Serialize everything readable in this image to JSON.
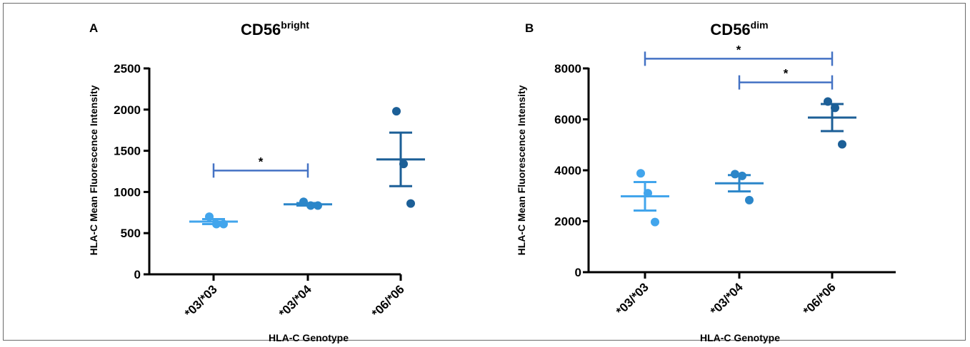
{
  "colors": {
    "g1": "#42a5ec",
    "g2": "#2b86c9",
    "g3": "#1c5f97",
    "bracket": "#4472c4",
    "axis": "#000000"
  },
  "chart_data": [
    {
      "type": "scatter",
      "panel_label": "A",
      "title": "CD56",
      "title_sup": "bright",
      "xlabel": "HLA-C Genotype",
      "ylabel": "HLA-C Mean Fluorescence Intensity",
      "categories": [
        "*03/*03",
        "*03/*04",
        "*06/*06"
      ],
      "ylim": [
        0,
        2500
      ],
      "yticks": [
        0,
        500,
        1000,
        1500,
        2000,
        2500
      ],
      "ytick_labels": [
        "0",
        "500",
        "1000",
        "1500",
        "2000",
        "2500"
      ],
      "series": [
        {
          "category": "*03/*03",
          "points": [
            700,
            610,
            610
          ],
          "mean": 640,
          "sem_low": 610,
          "sem_high": 670
        },
        {
          "category": "*03/*04",
          "points": [
            880,
            835,
            835
          ],
          "mean": 850,
          "sem_low": 835,
          "sem_high": 865
        },
        {
          "category": "*06/*06",
          "points": [
            1980,
            1340,
            860
          ],
          "mean": 1395,
          "sem_low": 1070,
          "sem_high": 1720
        }
      ],
      "significance": [
        {
          "from": "*03/*03",
          "to": "*03/*04",
          "y": 1260,
          "label": "*"
        }
      ]
    },
    {
      "type": "scatter",
      "panel_label": "B",
      "title": "CD56",
      "title_sup": "dim",
      "xlabel": "HLA-C Genotype",
      "ylabel": "HLA-C Mean Fluorescence Intensity",
      "categories": [
        "*03/*03",
        "*03/*04",
        "*06/*06"
      ],
      "ylim": [
        0,
        8000
      ],
      "yticks": [
        0,
        2000,
        4000,
        6000,
        8000
      ],
      "ytick_labels": [
        "0",
        "2000",
        "4000",
        "6000",
        "8000"
      ],
      "series": [
        {
          "category": "*03/*03",
          "points": [
            3880,
            3100,
            1970
          ],
          "mean": 2980,
          "sem_low": 2420,
          "sem_high": 3540
        },
        {
          "category": "*03/*04",
          "points": [
            3850,
            3780,
            2830
          ],
          "mean": 3490,
          "sem_low": 3170,
          "sem_high": 3810
        },
        {
          "category": "*06/*06",
          "points": [
            6700,
            6450,
            5020
          ],
          "mean": 6070,
          "sem_low": 5540,
          "sem_high": 6600
        }
      ],
      "significance": [
        {
          "from": "*03/*03",
          "to": "*06/*06",
          "y": 8380,
          "label": "*"
        },
        {
          "from": "*03/*04",
          "to": "*06/*06",
          "y": 7450,
          "label": "*"
        }
      ]
    }
  ]
}
